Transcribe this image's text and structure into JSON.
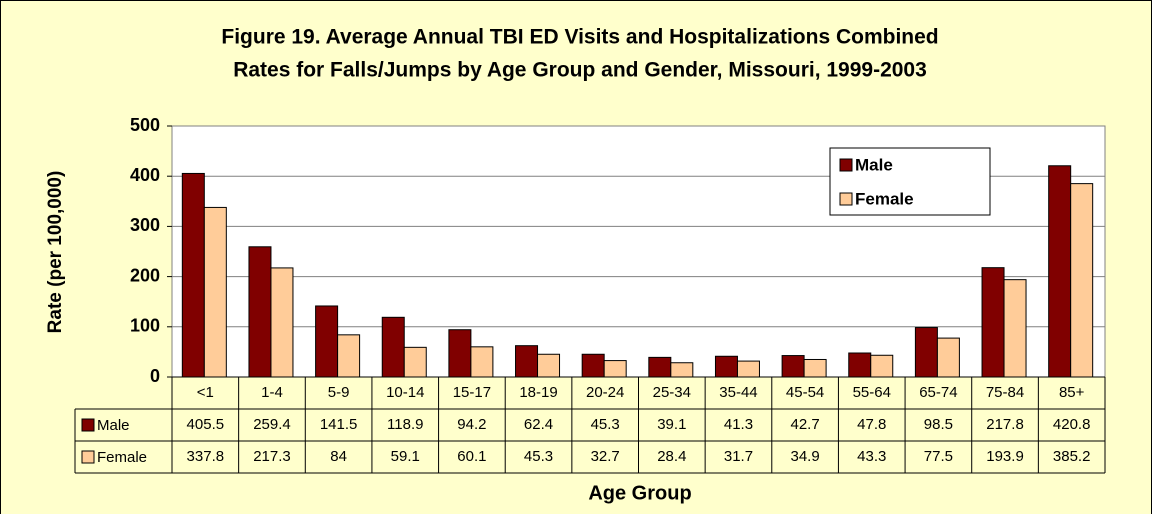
{
  "chart_data": {
    "type": "bar",
    "title": [
      "Figure 19. Average Annual TBI ED Visits and Hospitalizations Combined",
      "Rates for Falls/Jumps by Age Group and Gender, Missouri, 1999-2003"
    ],
    "x_label": "Age Group",
    "y_label": "Rate (per 100,000)",
    "categories": [
      "<1",
      "1-4",
      "5-9",
      "10-14",
      "15-17",
      "18-19",
      "20-24",
      "25-34",
      "35-44",
      "45-54",
      "55-64",
      "65-74",
      "75-84",
      "85+"
    ],
    "series": [
      {
        "name": "Male",
        "color": "#800000",
        "values": [
          405.5,
          259.4,
          141.5,
          118.9,
          94.2,
          62.4,
          45.3,
          39.1,
          41.3,
          42.7,
          47.8,
          98.5,
          217.8,
          420.8
        ]
      },
      {
        "name": "Female",
        "color": "#FFCC99",
        "values": [
          337.8,
          217.3,
          84,
          59.1,
          60.1,
          45.3,
          32.7,
          28.4,
          31.7,
          34.9,
          43.3,
          77.5,
          193.9,
          385.2
        ]
      }
    ],
    "ylim": [
      0,
      500
    ],
    "yticks": [
      0,
      100,
      200,
      300,
      400,
      500
    ],
    "grid": true,
    "legend": "upper right"
  }
}
